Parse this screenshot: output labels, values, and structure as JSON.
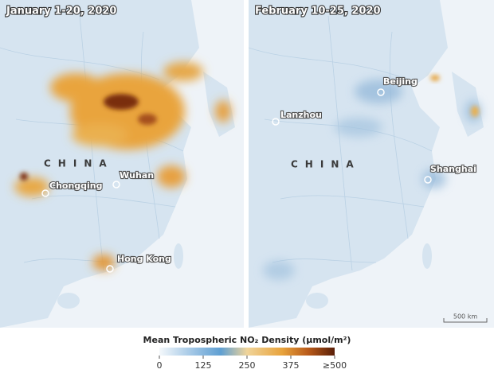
{
  "left_panel": {
    "title": "January 1-20, 2020",
    "country": "CHINA",
    "cities": [
      "Chongqing",
      "Wuhan",
      "Hong Kong"
    ]
  },
  "right_panel": {
    "title": "February 10-25, 2020",
    "country": "CHINA",
    "cities": [
      "Beijing",
      "Lanzhou",
      "Shanghai"
    ],
    "scale": "500 km"
  },
  "legend": {
    "title": "Mean Tropospheric NO₂ Density (μmol/m²)",
    "ticks": [
      0,
      125,
      250,
      375,
      {
        "value": 500,
        "label": "≥500"
      }
    ]
  }
}
